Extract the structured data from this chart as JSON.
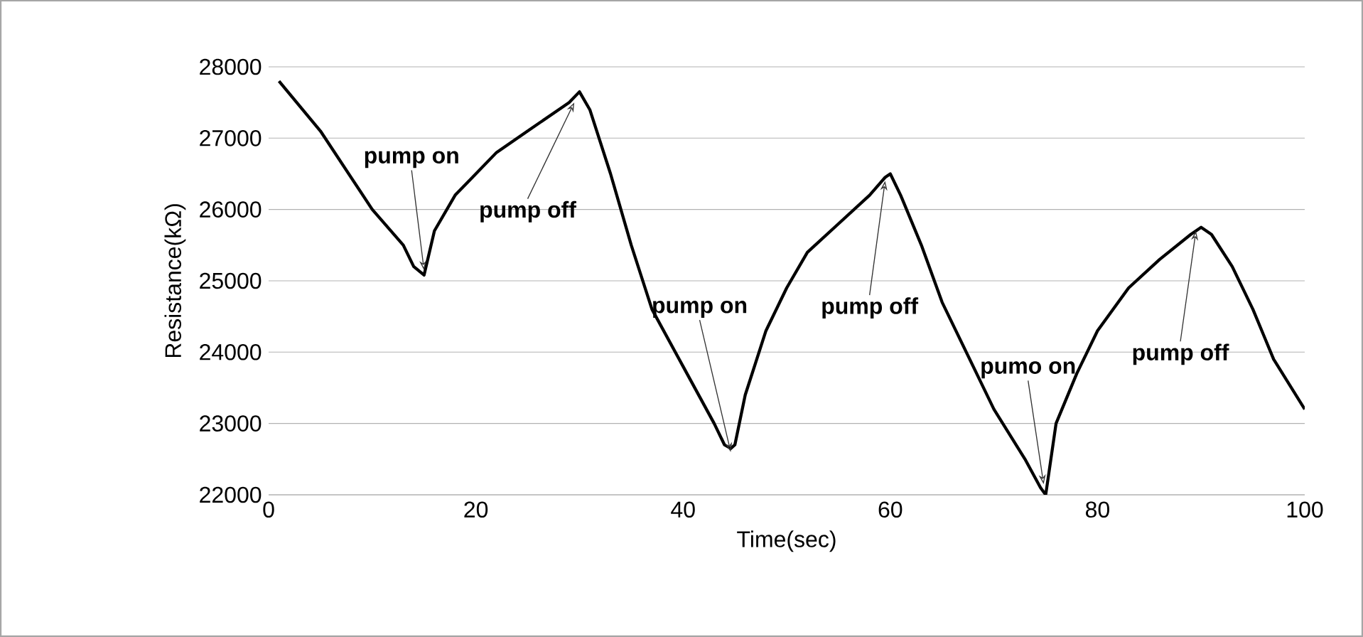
{
  "chart_data": {
    "type": "line",
    "xlabel": "Time(sec)",
    "ylabel": "Resistance(kΩ)",
    "xlim": [
      0,
      100
    ],
    "xticks": [
      0,
      20,
      40,
      60,
      80,
      100
    ],
    "ylim": [
      22000,
      28000
    ],
    "yticks": [
      22000,
      23000,
      24000,
      25000,
      26000,
      27000,
      28000
    ],
    "grid": "y",
    "marker": "none",
    "series": [
      {
        "color": "#000000",
        "x": [
          1,
          5,
          10,
          13,
          14,
          15,
          16,
          18,
          20,
          22,
          25,
          28,
          29,
          30,
          31,
          33,
          35,
          37,
          40,
          43,
          44,
          44.6,
          45,
          46,
          48,
          50,
          52,
          55,
          58,
          59.5,
          60,
          61,
          63,
          65,
          68,
          70,
          73,
          74.5,
          75,
          76,
          78,
          80,
          83,
          86,
          89,
          90,
          91,
          93,
          95,
          97,
          100
        ],
        "values": [
          27800,
          27100,
          26000,
          25500,
          25200,
          25080,
          25700,
          26200,
          26500,
          26800,
          27100,
          27400,
          27500,
          27650,
          27400,
          26500,
          25500,
          24600,
          23800,
          23000,
          22700,
          22650,
          22700,
          23400,
          24300,
          24900,
          25400,
          25800,
          26200,
          26450,
          26500,
          26200,
          25500,
          24700,
          23800,
          23200,
          22500,
          22100,
          22000,
          23000,
          23700,
          24300,
          24900,
          25300,
          25650,
          25750,
          25650,
          25200,
          24600,
          23900,
          23200
        ]
      }
    ],
    "annotations": [
      {
        "text": "pump on",
        "x": 15,
        "y": 25150
      },
      {
        "text": "pump off",
        "x": 29.5,
        "y": 27500
      },
      {
        "text": "pump on",
        "x": 44.6,
        "y": 22600
      },
      {
        "text": "pump off",
        "x": 59.5,
        "y": 26400
      },
      {
        "text": "pumo on",
        "x": 74.8,
        "y": 22150
      },
      {
        "text": "pump off",
        "x": 89.5,
        "y": 25700
      }
    ]
  }
}
